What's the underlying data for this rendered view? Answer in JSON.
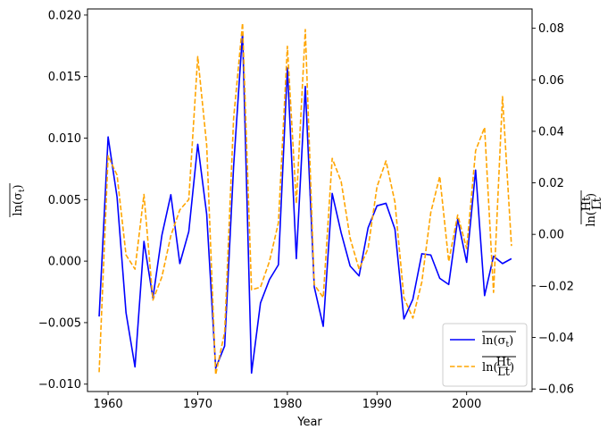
{
  "chart_data": {
    "type": "line",
    "xlabel": "Year",
    "ylabel_left": "ln(σ_t) (overlined)",
    "ylabel_right": "ln(H_t / L_t) (overlined)",
    "xlim": [
      1957.7,
      2007.3
    ],
    "xticks": [
      1960,
      1970,
      1980,
      1990,
      2000
    ],
    "ylim_left": [
      -0.0106,
      0.0205
    ],
    "yticks_left": [
      -0.01,
      -0.005,
      0.0,
      0.005,
      0.01,
      0.015,
      0.02
    ],
    "ylim_right": [
      -0.061,
      0.0875
    ],
    "yticks_right": [
      -0.06,
      -0.04,
      -0.02,
      0.0,
      0.02,
      0.04,
      0.06,
      0.08
    ],
    "legend_position": "lower-right",
    "grid": false,
    "x": [
      1959,
      1960,
      1961,
      1962,
      1963,
      1964,
      1965,
      1966,
      1967,
      1968,
      1969,
      1970,
      1971,
      1972,
      1973,
      1974,
      1975,
      1976,
      1977,
      1978,
      1979,
      1980,
      1981,
      1982,
      1983,
      1984,
      1985,
      1986,
      1987,
      1988,
      1989,
      1990,
      1991,
      1992,
      1993,
      1994,
      1995,
      1996,
      1997,
      1998,
      1999,
      2000,
      2001,
      2002,
      2003,
      2004,
      2005
    ],
    "series": [
      {
        "name": "ln(σt) overlined",
        "axis": "left",
        "color": "#0000ff",
        "dash": "solid",
        "values": [
          -0.0045,
          0.0101,
          0.0052,
          -0.0042,
          -0.0086,
          0.0016,
          -0.003,
          0.0021,
          0.0054,
          -0.0002,
          0.0024,
          0.0095,
          0.0038,
          -0.0087,
          -0.0069,
          0.0077,
          0.0186,
          -0.0091,
          -0.0034,
          -0.0015,
          -0.0003,
          0.0157,
          0.0002,
          0.0142,
          -0.0021,
          -0.0053,
          0.0055,
          0.0023,
          -0.0004,
          -0.0012,
          0.0027,
          0.0045,
          0.0047,
          0.0026,
          -0.0047,
          -0.0031,
          0.0006,
          0.0005,
          -0.0014,
          -0.0019,
          0.0034,
          -0.0001,
          0.0074,
          -0.0028,
          0.0004,
          -0.0002,
          0.0002
        ]
      },
      {
        "name": "ln(Ht/Lt) overlined",
        "axis": "right",
        "color": "#ffa500",
        "dash": "dashed",
        "values": [
          -0.0535,
          0.0305,
          0.023,
          -0.008,
          -0.0135,
          0.0155,
          -0.0255,
          -0.0165,
          -0.0005,
          0.0095,
          0.0135,
          0.069,
          0.0345,
          -0.0545,
          -0.038,
          0.045,
          0.082,
          -0.0215,
          -0.0205,
          -0.0105,
          0.0045,
          0.073,
          0.012,
          0.0795,
          -0.0195,
          -0.0245,
          0.0295,
          0.0205,
          -0.0015,
          -0.0135,
          -0.0055,
          0.0185,
          0.0285,
          0.0125,
          -0.0245,
          -0.0325,
          -0.0185,
          0.0085,
          0.0225,
          -0.0105,
          0.0075,
          -0.0055,
          0.0325,
          0.0415,
          -0.0225,
          0.0535,
          -0.0045
        ]
      }
    ]
  }
}
